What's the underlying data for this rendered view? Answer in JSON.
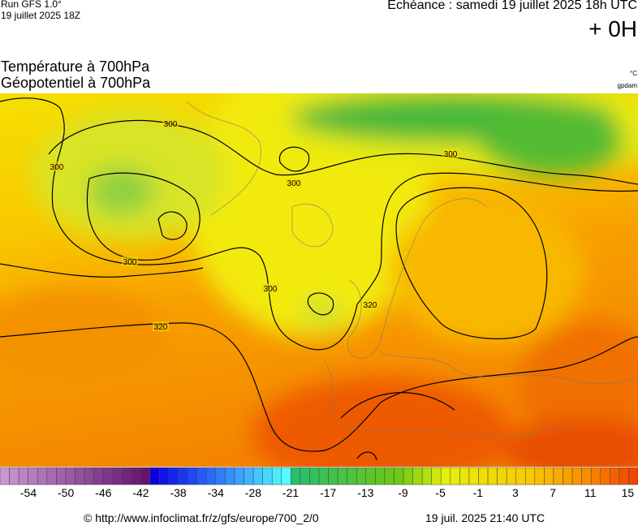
{
  "header": {
    "run": "Run GFS 1.0°",
    "run_date": "19 juillet 2025 18Z",
    "valid": "Echéance : samedi 19 juillet 2025 18h UTC",
    "lead": "+ 0H"
  },
  "titles": {
    "line1": "Température à 700hPa",
    "line2": "Géopotentiel à 700hPa",
    "unit1": "°C",
    "unit2": "gpdam"
  },
  "contour_labels": [
    "300",
    "300",
    "300",
    "300",
    "300",
    "300",
    "320",
    "320"
  ],
  "colorbar_labels": [
    -54,
    -50,
    -46,
    -42,
    -38,
    -34,
    -28,
    -21,
    -17,
    -13,
    -9,
    -5,
    -1,
    3,
    7,
    11,
    15
  ],
  "footer": {
    "source": "© http://www.infoclimat.fr/z/gfs/europe/700_2/0",
    "generated": "19 juil. 2025 21:40 UTC"
  }
}
